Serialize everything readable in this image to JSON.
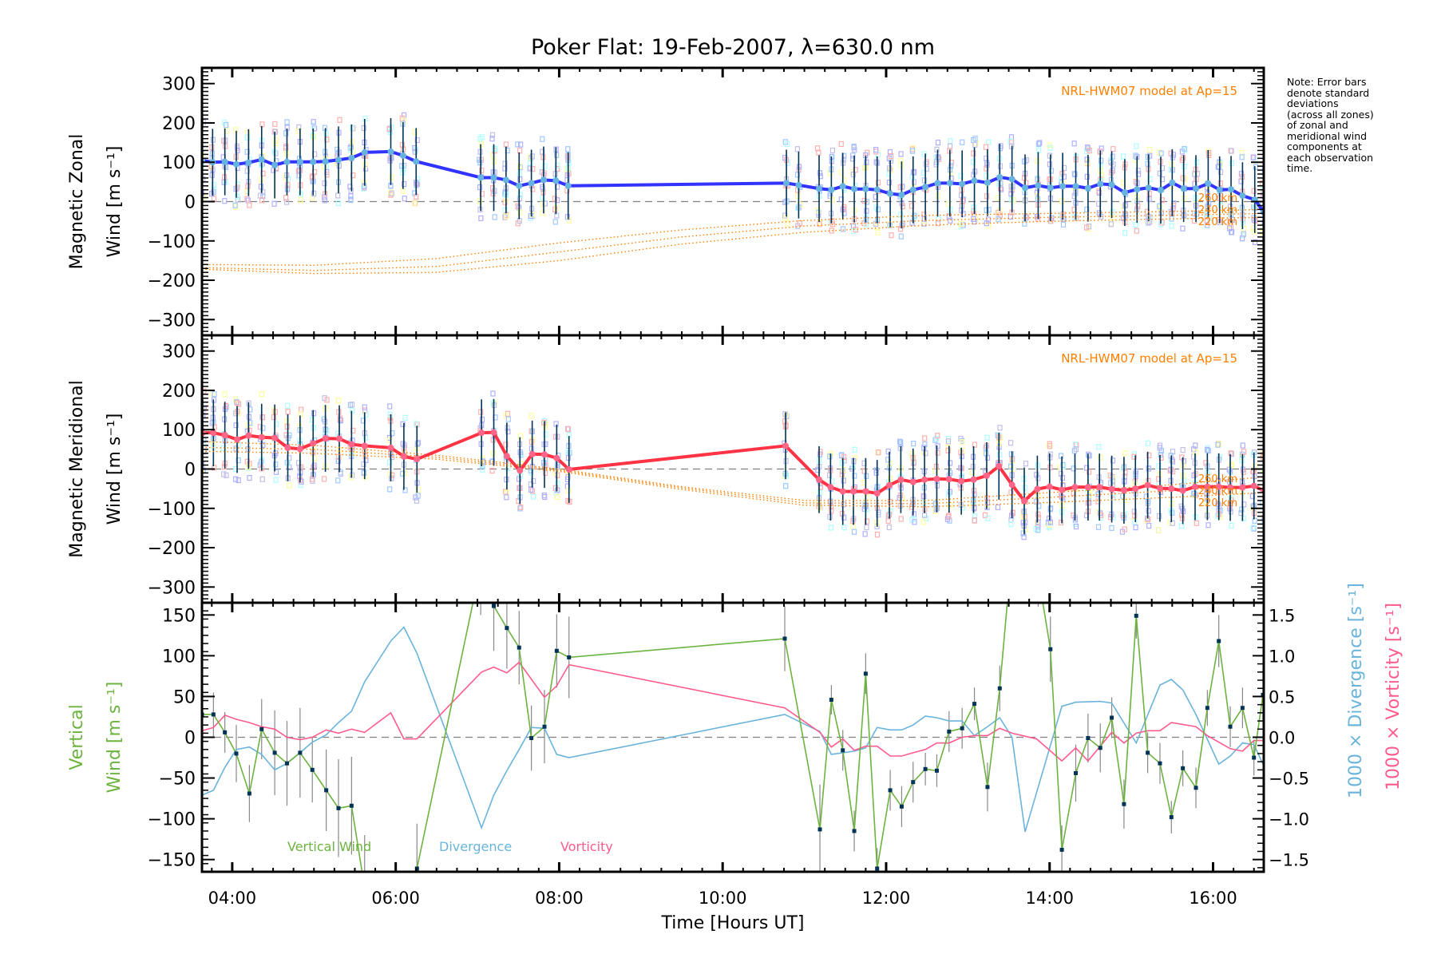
{
  "title": "Poker Flat: 19-Feb-2007, λ=630.0 nm",
  "note": "Note: Error bars\ndenote standard\ndeviations\n(across all zones)\nof zonal and\nmeridional wind\ncomponents at\neach observation\ntime.",
  "colors": {
    "zonal": "#3333ff",
    "meridional": "#ff3344",
    "marker": "#66b3e0",
    "meridional_marker": "#ff6688",
    "model": "#ff8000",
    "vertical": "#6db33f",
    "divergence": "#6ab4dc",
    "vorticity": "#ff5c8d",
    "errorbar": "#003355",
    "vert_errorbar": "#888888",
    "vert_point": "#003355",
    "zero_line": "#808080"
  },
  "chart_data": [
    {
      "type": "line",
      "panel": "zonal",
      "title": "Poker Flat: 19-Feb-2007, λ=630.0 nm",
      "ylabel": "Magnetic Zonal Wind [m s⁻¹]",
      "ylabel_line1": "Magnetic Zonal",
      "ylabel_line2": "Wind [m s⁻¹]",
      "ylim": [
        -340,
        340
      ],
      "yticks": [
        300,
        200,
        100,
        0,
        -100,
        -200,
        -300
      ],
      "ytick_labels": [
        "300",
        "200",
        "100",
        "0",
        "−100",
        "−200",
        "−300"
      ],
      "xlim": [
        3.63,
        16.62
      ],
      "annotation": "NRL-HWM07 model at Ap=15",
      "model_labels": [
        "260 km",
        "240 km",
        "220 km"
      ],
      "series": [
        {
          "name": "Magnetic Zonal Wind",
          "x": [
            3.63,
            3.76,
            3.91,
            4.05,
            4.2,
            4.36,
            4.52,
            4.67,
            4.83,
            4.99,
            5.14,
            5.3,
            5.46,
            5.62,
            5.94,
            6.09,
            6.25,
            7.04,
            7.2,
            7.35,
            7.51,
            7.66,
            7.81,
            7.96,
            8.11,
            10.78,
            10.93,
            11.18,
            11.33,
            11.47,
            11.61,
            11.75,
            11.89,
            12.05,
            12.19,
            12.33,
            12.48,
            12.63,
            12.78,
            12.93,
            13.08,
            13.24,
            13.39,
            13.54,
            13.7,
            13.86,
            14.01,
            14.16,
            14.32,
            14.47,
            14.62,
            14.76,
            14.92,
            15.07,
            15.21,
            15.36,
            15.5,
            15.64,
            15.79,
            15.94,
            16.08,
            16.22,
            16.36,
            16.51,
            16.62
          ],
          "y": [
            105,
            100,
            101,
            95,
            99,
            107,
            93,
            101,
            101,
            101,
            102,
            106,
            111,
            125,
            127,
            117,
            102,
            61,
            61,
            55,
            40,
            47,
            55,
            53,
            40,
            47,
            42,
            33,
            30,
            39,
            32,
            32,
            30,
            20,
            17,
            30,
            37,
            47,
            47,
            45,
            53,
            48,
            62,
            57,
            35,
            41,
            35,
            39,
            39,
            34,
            45,
            43,
            23,
            31,
            35,
            29,
            48,
            33,
            33,
            46,
            30,
            31,
            15,
            5,
            -27
          ],
          "error": 85
        },
        {
          "name": "HWM07 260 km",
          "x": [
            3.63,
            5,
            6.5,
            8,
            9.5,
            11,
            12.5,
            14,
            15.5,
            16.62
          ],
          "y": [
            -160,
            -162,
            -145,
            -105,
            -72,
            -48,
            -35,
            -30,
            -25,
            -20
          ]
        },
        {
          "name": "HWM07 240 km",
          "x": [
            3.63,
            5,
            6.5,
            8,
            9.5,
            11,
            12.5,
            14,
            15.5,
            16.62
          ],
          "y": [
            -168,
            -175,
            -165,
            -128,
            -90,
            -62,
            -48,
            -40,
            -35,
            -30
          ]
        },
        {
          "name": "HWM07 220 km",
          "x": [
            3.63,
            5,
            6.5,
            8,
            9.5,
            11,
            12.5,
            14,
            15.5,
            16.62
          ],
          "y": [
            -172,
            -183,
            -180,
            -150,
            -108,
            -78,
            -60,
            -50,
            -44,
            -40
          ]
        }
      ]
    },
    {
      "type": "line",
      "panel": "meridional",
      "ylabel": "Magnetic Meridional Wind [m s⁻¹]",
      "ylabel_line1": "Magnetic Meridional",
      "ylabel_line2": "Wind [m s⁻¹]",
      "ylim": [
        -340,
        340
      ],
      "yticks": [
        300,
        200,
        100,
        0,
        -100,
        -200,
        -300
      ],
      "ytick_labels": [
        "300",
        "200",
        "100",
        "0",
        "−100",
        "−200",
        "−300"
      ],
      "xlim": [
        3.63,
        16.62
      ],
      "annotation": "NRL-HWM07 model at Ap=15",
      "model_labels": [
        "260 km",
        "240 km",
        "220 km"
      ],
      "series": [
        {
          "name": "Magnetic Meridional Wind",
          "x": [
            3.64,
            3.77,
            3.91,
            4.06,
            4.2,
            4.36,
            4.52,
            4.68,
            4.83,
            4.99,
            5.14,
            5.31,
            5.46,
            5.62,
            5.94,
            6.1,
            6.26,
            7.05,
            7.2,
            7.36,
            7.52,
            7.67,
            7.82,
            7.97,
            8.12,
            10.77,
            11.18,
            11.32,
            11.47,
            11.6,
            11.75,
            11.89,
            12.04,
            12.18,
            12.33,
            12.47,
            12.62,
            12.77,
            12.92,
            13.07,
            13.23,
            13.38,
            13.54,
            13.69,
            13.85,
            14.0,
            14.15,
            14.31,
            14.47,
            14.61,
            14.76,
            14.91,
            15.05,
            15.2,
            15.35,
            15.49,
            15.63,
            15.78,
            15.93,
            16.07,
            16.21,
            16.36,
            16.5,
            16.62
          ],
          "y": [
            92,
            92,
            86,
            75,
            85,
            81,
            79,
            54,
            51,
            65,
            78,
            77,
            63,
            59,
            54,
            32,
            25,
            92,
            93,
            33,
            -4,
            38,
            37,
            28,
            -1,
            59,
            -27,
            -46,
            -57,
            -57,
            -57,
            -62,
            -41,
            -27,
            -33,
            -27,
            -25,
            -26,
            -31,
            -27,
            -17,
            7,
            -40,
            -81,
            -51,
            -45,
            -53,
            -46,
            -46,
            -46,
            -51,
            -54,
            -50,
            -41,
            -49,
            -50,
            -55,
            -45,
            -45,
            -45,
            -47,
            -47,
            -43,
            -55
          ],
          "error": 85
        },
        {
          "name": "HWM07 260 km",
          "x": [
            3.63,
            5,
            6.5,
            8,
            9.5,
            11,
            12.5,
            14,
            15.5,
            16.62
          ],
          "y": [
            70,
            60,
            35,
            0,
            -45,
            -80,
            -80,
            -60,
            -40,
            -20
          ]
        },
        {
          "name": "HWM07 240 km",
          "x": [
            3.63,
            5,
            6.5,
            8,
            9.5,
            11,
            12.5,
            14,
            15.5,
            16.62
          ],
          "y": [
            55,
            50,
            30,
            -3,
            -48,
            -86,
            -88,
            -72,
            -55,
            -40
          ]
        },
        {
          "name": "HWM07 220 km",
          "x": [
            3.63,
            5,
            6.5,
            8,
            9.5,
            11,
            12.5,
            14,
            15.5,
            16.62
          ],
          "y": [
            45,
            40,
            25,
            -6,
            -52,
            -92,
            -96,
            -85,
            -72,
            -60
          ]
        }
      ]
    },
    {
      "type": "line",
      "panel": "vertical",
      "xlabel": "Time [Hours UT]",
      "ylabel": "Vertical Wind [m s⁻¹]",
      "ylabel_line1": "Vertical",
      "ylabel_line2": "Wind [m s⁻¹]",
      "ylim": [
        -165,
        165
      ],
      "yticks": [
        150,
        100,
        50,
        0,
        -50,
        -100,
        -150
      ],
      "ytick_labels": [
        "150",
        "100",
        "50",
        "0",
        "−50",
        "−100",
        "−150"
      ],
      "y2label_div": "1000 × Divergence [s⁻¹]",
      "y2label_vort": "1000 × Vorticity [s⁻¹]",
      "y2lim": [
        -1.65,
        1.65
      ],
      "y2ticks": [
        1.5,
        1.0,
        0.5,
        0.0,
        -0.5,
        -1.0,
        -1.5
      ],
      "y2tick_labels": [
        "1.5",
        "1.0",
        "0.5",
        "0.0",
        "−0.5",
        "−1.0",
        "−1.5"
      ],
      "xlim": [
        3.63,
        16.62
      ],
      "xticks": [
        4,
        6,
        8,
        10,
        12,
        14,
        16
      ],
      "xtick_labels": [
        "04:00",
        "06:00",
        "08:00",
        "10:00",
        "12:00",
        "14:00",
        "16:00"
      ],
      "legend": [
        "Vertical Wind",
        "Divergence",
        "Vorticity"
      ],
      "legend_position": "bottom-left",
      "series": [
        {
          "name": "Vertical Wind",
          "axis": "left",
          "x": [
            3.63,
            3.77,
            3.91,
            4.05,
            4.21,
            4.36,
            4.52,
            4.67,
            4.83,
            4.98,
            5.15,
            5.3,
            5.46,
            5.62,
            5.94,
            6.26,
            7.04,
            7.2,
            7.36,
            7.51,
            7.66,
            7.82,
            7.97,
            8.12,
            10.76,
            11.19,
            11.33,
            11.47,
            11.61,
            11.75,
            11.89,
            12.05,
            12.19,
            12.33,
            12.48,
            12.62,
            12.77,
            12.93,
            13.08,
            13.24,
            13.39,
            13.54,
            13.86,
            14.01,
            14.15,
            14.32,
            14.47,
            14.62,
            14.76,
            14.91,
            15.06,
            15.2,
            15.35,
            15.49,
            15.63,
            15.79,
            15.93,
            16.07,
            16.21,
            16.36,
            16.5,
            16.61
          ],
          "y": [
            28,
            28,
            6,
            -20,
            -69,
            10,
            -19,
            -32,
            -19,
            -40,
            -65,
            -87,
            -84,
            -185,
            -230,
            -161,
            210,
            161,
            134,
            110,
            -1,
            13,
            106,
            98,
            121,
            -113,
            46,
            -16,
            -115,
            78,
            -161,
            -65,
            -85,
            -55,
            -39,
            -41,
            7,
            11,
            41,
            -61,
            60,
            230,
            200,
            108,
            -138,
            -44,
            -1,
            -13,
            24,
            -82,
            149,
            -19,
            -32,
            -98,
            -38,
            -62,
            36,
            118,
            13,
            36,
            -25,
            52
          ],
          "error": [
            30,
            27,
            25,
            35,
            35,
            37,
            52,
            52,
            55,
            40,
            50,
            60,
            60,
            65,
            55,
            55,
            60,
            55,
            50,
            45,
            40,
            45,
            45,
            50,
            40,
            55,
            18,
            25,
            25,
            25,
            25,
            25,
            25,
            25,
            20,
            20,
            25,
            25,
            20,
            30,
            28,
            35,
            40,
            40,
            30,
            35,
            30,
            30,
            25,
            30,
            28,
            25,
            25,
            20,
            22,
            25,
            22,
            32,
            25,
            25,
            22,
            30
          ]
        },
        {
          "name": "Divergence",
          "axis": "right",
          "x": [
            3.63,
            3.77,
            3.91,
            4.05,
            4.21,
            4.36,
            4.52,
            4.67,
            4.83,
            4.98,
            5.15,
            5.3,
            5.46,
            5.62,
            5.94,
            6.1,
            6.26,
            7.05,
            7.2,
            7.36,
            7.51,
            7.66,
            7.82,
            7.97,
            8.12,
            10.76,
            11.19,
            11.33,
            11.47,
            11.61,
            11.75,
            11.89,
            12.05,
            12.19,
            12.33,
            12.48,
            12.62,
            12.77,
            12.93,
            13.08,
            13.24,
            13.39,
            13.54,
            13.7,
            14.15,
            14.32,
            14.62,
            14.76,
            15.06,
            15.35,
            15.49,
            15.63,
            15.79,
            16.07,
            16.21,
            16.36,
            16.5,
            16.61
          ],
          "y": [
            -0.71,
            -0.65,
            -0.37,
            -0.15,
            -0.12,
            -0.21,
            -0.4,
            -0.32,
            -0.19,
            -0.06,
            0.03,
            0.18,
            0.32,
            0.68,
            1.18,
            1.35,
            1.03,
            -1.11,
            -0.71,
            -0.41,
            -0.15,
            0.12,
            0.11,
            -0.21,
            -0.25,
            0.28,
            0.07,
            -0.21,
            -0.19,
            -0.17,
            -0.13,
            0.12,
            0.09,
            0.09,
            0.15,
            0.26,
            0.24,
            0.2,
            0.2,
            0.02,
            0.13,
            0.24,
            0.0,
            -1.16,
            0.38,
            0.43,
            0.44,
            0.42,
            -0.07,
            0.64,
            0.71,
            0.58,
            0.28,
            -0.33,
            -0.23,
            -0.07,
            -0.09,
            -0.33
          ]
        },
        {
          "name": "Vorticity",
          "axis": "right",
          "x": [
            3.63,
            3.77,
            3.91,
            4.05,
            4.21,
            4.36,
            4.52,
            4.67,
            4.83,
            4.98,
            5.15,
            5.3,
            5.46,
            5.62,
            5.94,
            6.1,
            6.26,
            7.05,
            7.2,
            7.36,
            7.51,
            7.82,
            7.97,
            8.12,
            10.76,
            11.19,
            11.33,
            11.47,
            11.61,
            11.75,
            11.89,
            12.05,
            12.19,
            12.33,
            12.48,
            12.62,
            12.77,
            12.93,
            13.08,
            13.24,
            13.39,
            13.54,
            13.84,
            14.15,
            14.32,
            14.47,
            14.76,
            14.91,
            15.06,
            15.2,
            15.35,
            15.49,
            15.79,
            15.93,
            16.21,
            16.36,
            16.5,
            16.61
          ],
          "y": [
            0.08,
            0.12,
            0.27,
            0.22,
            0.18,
            0.13,
            0.1,
            0.0,
            -0.03,
            0.0,
            0.09,
            0.05,
            0.1,
            0.06,
            0.3,
            -0.02,
            -0.02,
            0.8,
            0.86,
            0.79,
            0.92,
            0.49,
            0.63,
            0.89,
            0.36,
            0.06,
            -0.12,
            -0.02,
            -0.16,
            -0.11,
            -0.11,
            -0.23,
            -0.23,
            -0.19,
            -0.15,
            -0.07,
            -0.07,
            0.0,
            0.02,
            0.02,
            0.11,
            0.05,
            -0.02,
            -0.29,
            -0.13,
            -0.29,
            0.06,
            -0.07,
            0.05,
            0.08,
            0.08,
            0.18,
            0.13,
            0.02,
            -0.14,
            -0.17,
            -0.04,
            -0.04
          ]
        }
      ]
    }
  ]
}
